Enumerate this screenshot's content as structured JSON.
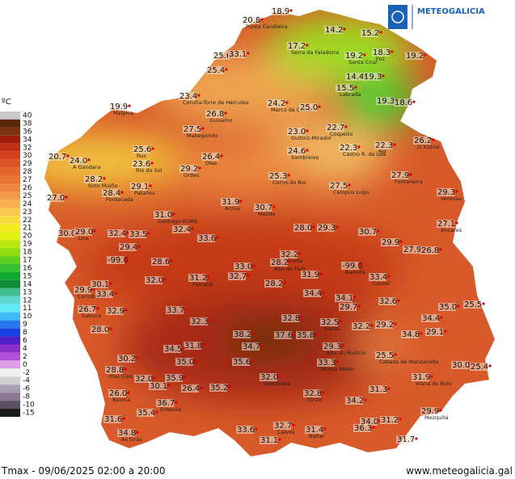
{
  "header": {
    "brand": "METEOGALICIA",
    "units": "ºC"
  },
  "footer": {
    "caption": "Tmax - 09/06/2025 02:00 a 20:00",
    "website": "www.meteogalicia.gal"
  },
  "legend": {
    "ticks": [
      40,
      38,
      36,
      34,
      32,
      30,
      29,
      28,
      27,
      26,
      25,
      24,
      23,
      22,
      21,
      20,
      19,
      18,
      17,
      16,
      15,
      14,
      13,
      12,
      11,
      10,
      9,
      8,
      6,
      4,
      2,
      0,
      -2,
      -4,
      -6,
      -8,
      -10,
      -15
    ],
    "colors": [
      "#c8c8c8",
      "#5a2608",
      "#7c3410",
      "#a01e0a",
      "#be2e14",
      "#d2401c",
      "#dc5222",
      "#e4632a",
      "#ea7434",
      "#ee8640",
      "#f29a4a",
      "#f6b050",
      "#f8c850",
      "#f8dc40",
      "#f4ec20",
      "#e0f010",
      "#b8e810",
      "#90dc10",
      "#60d020",
      "#30c030",
      "#10a830",
      "#108c38",
      "#40c090",
      "#60d8d0",
      "#60e8f8",
      "#40b8f8",
      "#2878f0",
      "#1840e0",
      "#5020c8",
      "#8830c8",
      "#b050d8",
      "#e0a0e8",
      "#f0f0f0",
      "#d0d0d0",
      "#a8a0b0",
      "#8a7890",
      "#5a5060",
      "#1a1a1a"
    ]
  },
  "stations": [
    {
      "value": "20.8",
      "name": "Punta Candieira"
    },
    {
      "value": "18.9"
    },
    {
      "value": "14.2"
    },
    {
      "value": "15.2"
    },
    {
      "value": "17.2",
      "name": "Serra da Faladoira"
    },
    {
      "value": "19.2",
      "name": "Santa Cruz"
    },
    {
      "value": "18.3",
      "name": "Foz"
    },
    {
      "value": "19.2"
    },
    {
      "value": "25.6"
    },
    {
      "value": "33.1"
    },
    {
      "value": "25.4"
    },
    {
      "value": "23.4",
      "name": "Coruña-Torre de Hércules"
    },
    {
      "value": "19.9",
      "name": "Malpica"
    },
    {
      "value": "24.2",
      "name": "Marco da Curra"
    },
    {
      "value": "25.0"
    },
    {
      "value": "14.4"
    },
    {
      "value": "19.3"
    },
    {
      "value": "15.5",
      "name": "Labrada"
    },
    {
      "value": "19.3"
    },
    {
      "value": "18.6"
    },
    {
      "value": "26.8",
      "name": "Guisamo"
    },
    {
      "value": "27.5",
      "name": "Mabegondo"
    },
    {
      "value": "23.0",
      "name": "Guitiriz-Mirador"
    },
    {
      "value": "22.7",
      "name": "Cospeito"
    },
    {
      "value": "24.6",
      "name": "Sambreixo"
    },
    {
      "value": "22.3",
      "name": "Castro R. de Lea"
    },
    {
      "value": "22.3",
      "name": "Pol"
    },
    {
      "value": "26.2",
      "name": "O Xistral"
    },
    {
      "value": "25.6",
      "name": "Rus"
    },
    {
      "value": "23.6",
      "name": "Río do Sol"
    },
    {
      "value": "26.4",
      "name": "Olas"
    },
    {
      "value": "29.2",
      "name": "Ordes"
    },
    {
      "value": "20.7"
    },
    {
      "value": "24.0",
      "name": "A Gándara"
    },
    {
      "value": "28.2",
      "name": "Soto Muiño"
    },
    {
      "value": "29.1",
      "name": "Pataños"
    },
    {
      "value": "28.4",
      "name": "Fontecada"
    },
    {
      "value": "25.3",
      "name": "Corno do Boi"
    },
    {
      "value": "27.5",
      "name": "Campus Lugo"
    },
    {
      "value": "27.9",
      "name": "Fontaneira"
    },
    {
      "value": "27.0"
    },
    {
      "value": "29.3",
      "name": "Ventosa"
    },
    {
      "value": "31.9",
      "name": "Arzúa"
    },
    {
      "value": "30.7",
      "name": "Melide"
    },
    {
      "value": "31.0",
      "name": "Santiago-EOAS"
    },
    {
      "value": "28.0"
    },
    {
      "value": "29.3"
    },
    {
      "value": "27.1",
      "name": "Ancares"
    },
    {
      "value": "30.0"
    },
    {
      "value": "29.0",
      "name": "Lira"
    },
    {
      "value": "32.4"
    },
    {
      "value": "33.5"
    },
    {
      "value": "32.4"
    },
    {
      "value": "33.6"
    },
    {
      "value": "30.7"
    },
    {
      "value": "29.9"
    },
    {
      "value": "27.9"
    },
    {
      "value": "26.8"
    },
    {
      "value": "29.4"
    },
    {
      "value": "32.2",
      "name": "Olveda"
    },
    {
      "value": "-99.0"
    },
    {
      "value": "28.6"
    },
    {
      "value": "33.0"
    },
    {
      "value": "28.2",
      "name": "Alto do Faro"
    },
    {
      "value": "-99.0",
      "name": "Baveda"
    },
    {
      "value": "29.9",
      "name": "Corrubedo"
    },
    {
      "value": "30.1"
    },
    {
      "value": "32.0"
    },
    {
      "value": "31.2",
      "name": "Forcarei"
    },
    {
      "value": "32.7"
    },
    {
      "value": "31.9"
    },
    {
      "value": "28.2"
    },
    {
      "value": "33.4",
      "name": "Courel"
    },
    {
      "value": "33.4"
    },
    {
      "value": "34.4"
    },
    {
      "value": "26.7",
      "name": "Salvora"
    },
    {
      "value": "32.9"
    },
    {
      "value": "33.7"
    },
    {
      "value": "34.1"
    },
    {
      "value": "29.7"
    },
    {
      "value": "32.6"
    },
    {
      "value": "35.0"
    },
    {
      "value": "34.4"
    },
    {
      "value": "25.5"
    },
    {
      "value": "32.3"
    },
    {
      "value": "32.8"
    },
    {
      "value": "32.5",
      "name": "Xares"
    },
    {
      "value": "32.2"
    },
    {
      "value": "29.2"
    },
    {
      "value": "34.8"
    },
    {
      "value": "29.1"
    },
    {
      "value": "28.0"
    },
    {
      "value": "38.2"
    },
    {
      "value": "37.6"
    },
    {
      "value": "35.8"
    },
    {
      "value": "34.7"
    },
    {
      "value": "29.3",
      "name": "Alto do Rodicio"
    },
    {
      "value": "31.8"
    },
    {
      "value": "34.5"
    },
    {
      "value": "35.0"
    },
    {
      "value": "30.2"
    },
    {
      "value": "35.6"
    },
    {
      "value": "33.3",
      "name": "Monte Medo"
    },
    {
      "value": "25.5",
      "name": "Cabeza de Manzaneda"
    },
    {
      "value": "30.0"
    },
    {
      "value": "25.4"
    },
    {
      "value": "28.8",
      "name": "Illas Cíes"
    },
    {
      "value": "32.0"
    },
    {
      "value": "35.9"
    },
    {
      "value": "32.0",
      "name": "Gandarela"
    },
    {
      "value": "31.9",
      "name": "Viana do Bolo"
    },
    {
      "value": "30.1"
    },
    {
      "value": "26.4"
    },
    {
      "value": "35.2"
    },
    {
      "value": "31.3"
    },
    {
      "value": "26.0",
      "name": "Baiona"
    },
    {
      "value": "32.8",
      "name": "Ginzo"
    },
    {
      "value": "36.7",
      "name": "Entenza"
    },
    {
      "value": "34.2"
    },
    {
      "value": "35.4"
    },
    {
      "value": "29.9",
      "name": "Mezquita"
    },
    {
      "value": "31.6"
    },
    {
      "value": "32.7",
      "name": "Calvos"
    },
    {
      "value": "31.4",
      "name": "Baltar"
    },
    {
      "value": "34.0"
    },
    {
      "value": "31.2"
    },
    {
      "value": "33.6"
    },
    {
      "value": "36.3"
    },
    {
      "value": "34.8",
      "name": "As Eiras"
    },
    {
      "value": "31.1"
    },
    {
      "value": "31.7"
    }
  ]
}
